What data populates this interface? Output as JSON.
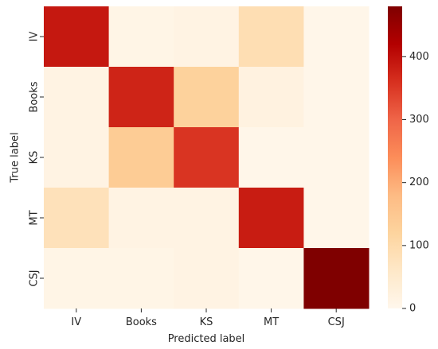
{
  "chart_data": {
    "type": "heatmap",
    "title": "",
    "xlabel": "Predicted label",
    "ylabel": "True label",
    "x_categories": [
      "IV",
      "Books",
      "KS",
      "MT",
      "CSJ"
    ],
    "y_categories": [
      "IV",
      "Books",
      "KS",
      "MT",
      "CSJ"
    ],
    "values": [
      [
        390,
        10,
        15,
        90,
        5
      ],
      [
        15,
        375,
        125,
        20,
        5
      ],
      [
        15,
        140,
        355,
        5,
        5
      ],
      [
        80,
        15,
        15,
        385,
        5
      ],
      [
        10,
        10,
        15,
        5,
        480
      ]
    ],
    "colorbar": {
      "min": 0,
      "max": 480,
      "ticks": [
        0,
        100,
        200,
        300,
        400
      ],
      "tick_labels": [
        "0",
        "100",
        "200",
        "300",
        "400"
      ],
      "colormap": "OrRd",
      "colormap_stops": [
        "#fff7ec",
        "#fee8c8",
        "#fdd49e",
        "#fdbb84",
        "#fc8d59",
        "#ef6548",
        "#d7301f",
        "#b30000",
        "#7f0000"
      ]
    }
  }
}
